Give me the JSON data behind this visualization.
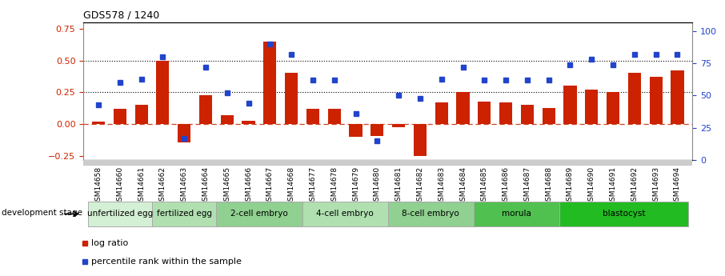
{
  "title": "GDS578 / 1240",
  "samples": [
    "GSM14658",
    "GSM14660",
    "GSM14661",
    "GSM14662",
    "GSM14663",
    "GSM14664",
    "GSM14665",
    "GSM14666",
    "GSM14667",
    "GSM14668",
    "GSM14677",
    "GSM14678",
    "GSM14679",
    "GSM14680",
    "GSM14681",
    "GSM14682",
    "GSM14683",
    "GSM14684",
    "GSM14685",
    "GSM14686",
    "GSM14687",
    "GSM14688",
    "GSM14689",
    "GSM14690",
    "GSM14691",
    "GSM14692",
    "GSM14693",
    "GSM14694"
  ],
  "log_ratio": [
    0.02,
    0.12,
    0.15,
    0.5,
    -0.14,
    0.23,
    0.07,
    0.03,
    0.65,
    0.4,
    0.12,
    0.12,
    -0.1,
    -0.09,
    -0.02,
    -0.25,
    0.17,
    0.25,
    0.18,
    0.17,
    0.15,
    0.13,
    0.3,
    0.27,
    0.25,
    0.4,
    0.37,
    0.42
  ],
  "percentile": [
    43,
    60,
    63,
    80,
    17,
    72,
    52,
    44,
    90,
    82,
    62,
    62,
    36,
    15,
    50,
    48,
    63,
    72,
    62,
    62,
    62,
    62,
    74,
    78,
    74,
    82,
    82,
    82
  ],
  "stages": [
    {
      "label": "unfertilized egg",
      "start": 0,
      "end": 3,
      "color": "#d4f0d4",
      "border": "#aaaaaa"
    },
    {
      "label": "fertilized egg",
      "start": 3,
      "end": 6,
      "color": "#b0e0b0",
      "border": "#aaaaaa"
    },
    {
      "label": "2-cell embryo",
      "start": 6,
      "end": 10,
      "color": "#90d090",
      "border": "#aaaaaa"
    },
    {
      "label": "4-cell embryo",
      "start": 10,
      "end": 14,
      "color": "#b0e0b0",
      "border": "#aaaaaa"
    },
    {
      "label": "8-cell embryo",
      "start": 14,
      "end": 18,
      "color": "#90d090",
      "border": "#aaaaaa"
    },
    {
      "label": "morula",
      "start": 18,
      "end": 22,
      "color": "#50c050",
      "border": "#aaaaaa"
    },
    {
      "label": "blastocyst",
      "start": 22,
      "end": 28,
      "color": "#22bb22",
      "border": "#aaaaaa"
    }
  ],
  "bar_color": "#cc2200",
  "point_color": "#2244cc",
  "ylim_left": [
    -0.28,
    0.8
  ],
  "ylim_right": [
    0,
    107
  ],
  "yticks_left": [
    -0.25,
    0.0,
    0.25,
    0.5,
    0.75
  ],
  "yticks_right": [
    0,
    25,
    50,
    75,
    100
  ],
  "hlines": [
    0.25,
    0.5
  ],
  "ref_line_y": 0.0,
  "background_color": "#ffffff"
}
